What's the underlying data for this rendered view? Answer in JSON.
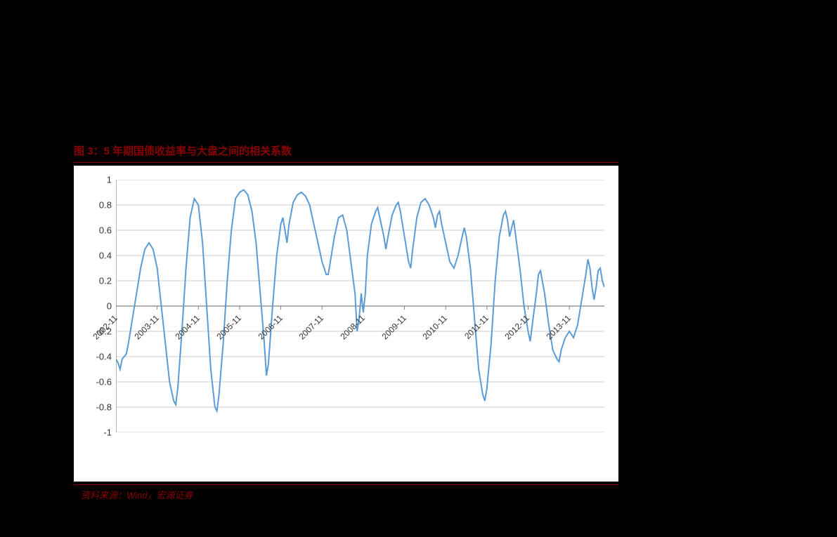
{
  "chart": {
    "type": "line",
    "title_prefix": "图 3：",
    "title": "5 年期国债收益率与大盘之间的相关系数",
    "source": "资料来源：Wind，宏源证券",
    "background_color": "#000000",
    "plot_background": "#ffffff",
    "title_color": "#8b0000",
    "source_color": "#8b0000",
    "axis_color": "#808080",
    "gridline_color": "#bfbfbf",
    "line_color": "#5b9bd5",
    "line_width": 2,
    "ylim": [
      -1,
      1
    ],
    "ytick_step": 0.2,
    "y_ticks": [
      -1,
      -0.8,
      -0.6,
      -0.4,
      -0.2,
      0,
      0.2,
      0.4,
      0.6,
      0.8,
      1
    ],
    "x_labels": [
      "2002-11",
      "2003-11",
      "2004-11",
      "2005-11",
      "2006-11",
      "2007-11",
      "2008-11",
      "2009-11",
      "2010-11",
      "2011-11",
      "2012-11",
      "2013-11"
    ],
    "x_label_rotation": -45,
    "tick_fontsize": 13,
    "title_fontsize": 15,
    "series": [
      {
        "x": 0,
        "y": -0.42
      },
      {
        "x": 0.05,
        "y": -0.45
      },
      {
        "x": 0.1,
        "y": -0.5
      },
      {
        "x": 0.15,
        "y": -0.42
      },
      {
        "x": 0.2,
        "y": -0.4
      },
      {
        "x": 0.25,
        "y": -0.38
      },
      {
        "x": 0.3,
        "y": -0.3
      },
      {
        "x": 0.4,
        "y": -0.1
      },
      {
        "x": 0.5,
        "y": 0.1
      },
      {
        "x": 0.6,
        "y": 0.3
      },
      {
        "x": 0.7,
        "y": 0.45
      },
      {
        "x": 0.8,
        "y": 0.5
      },
      {
        "x": 0.9,
        "y": 0.45
      },
      {
        "x": 1.0,
        "y": 0.3
      },
      {
        "x": 1.1,
        "y": 0.0
      },
      {
        "x": 1.2,
        "y": -0.3
      },
      {
        "x": 1.3,
        "y": -0.6
      },
      {
        "x": 1.4,
        "y": -0.75
      },
      {
        "x": 1.45,
        "y": -0.78
      },
      {
        "x": 1.5,
        "y": -0.65
      },
      {
        "x": 1.6,
        "y": -0.2
      },
      {
        "x": 1.7,
        "y": 0.3
      },
      {
        "x": 1.8,
        "y": 0.7
      },
      {
        "x": 1.9,
        "y": 0.85
      },
      {
        "x": 2.0,
        "y": 0.8
      },
      {
        "x": 2.1,
        "y": 0.5
      },
      {
        "x": 2.2,
        "y": 0.0
      },
      {
        "x": 2.3,
        "y": -0.5
      },
      {
        "x": 2.4,
        "y": -0.8
      },
      {
        "x": 2.45,
        "y": -0.83
      },
      {
        "x": 2.5,
        "y": -0.7
      },
      {
        "x": 2.6,
        "y": -0.3
      },
      {
        "x": 2.7,
        "y": 0.2
      },
      {
        "x": 2.8,
        "y": 0.6
      },
      {
        "x": 2.9,
        "y": 0.85
      },
      {
        "x": 3.0,
        "y": 0.9
      },
      {
        "x": 3.1,
        "y": 0.92
      },
      {
        "x": 3.2,
        "y": 0.88
      },
      {
        "x": 3.3,
        "y": 0.75
      },
      {
        "x": 3.4,
        "y": 0.5
      },
      {
        "x": 3.5,
        "y": 0.1
      },
      {
        "x": 3.6,
        "y": -0.3
      },
      {
        "x": 3.65,
        "y": -0.55
      },
      {
        "x": 3.7,
        "y": -0.45
      },
      {
        "x": 3.8,
        "y": 0.0
      },
      {
        "x": 3.9,
        "y": 0.4
      },
      {
        "x": 4.0,
        "y": 0.65
      },
      {
        "x": 4.05,
        "y": 0.7
      },
      {
        "x": 4.1,
        "y": 0.6
      },
      {
        "x": 4.15,
        "y": 0.5
      },
      {
        "x": 4.2,
        "y": 0.65
      },
      {
        "x": 4.3,
        "y": 0.82
      },
      {
        "x": 4.4,
        "y": 0.88
      },
      {
        "x": 4.5,
        "y": 0.9
      },
      {
        "x": 4.6,
        "y": 0.87
      },
      {
        "x": 4.7,
        "y": 0.8
      },
      {
        "x": 4.8,
        "y": 0.65
      },
      {
        "x": 4.9,
        "y": 0.5
      },
      {
        "x": 5.0,
        "y": 0.35
      },
      {
        "x": 5.1,
        "y": 0.25
      },
      {
        "x": 5.15,
        "y": 0.25
      },
      {
        "x": 5.2,
        "y": 0.35
      },
      {
        "x": 5.3,
        "y": 0.55
      },
      {
        "x": 5.4,
        "y": 0.7
      },
      {
        "x": 5.5,
        "y": 0.72
      },
      {
        "x": 5.6,
        "y": 0.6
      },
      {
        "x": 5.7,
        "y": 0.35
      },
      {
        "x": 5.8,
        "y": 0.1
      },
      {
        "x": 5.85,
        "y": -0.2
      },
      {
        "x": 5.9,
        "y": -0.1
      },
      {
        "x": 5.95,
        "y": 0.1
      },
      {
        "x": 6.0,
        "y": -0.05
      },
      {
        "x": 6.05,
        "y": 0.1
      },
      {
        "x": 6.1,
        "y": 0.4
      },
      {
        "x": 6.2,
        "y": 0.65
      },
      {
        "x": 6.3,
        "y": 0.75
      },
      {
        "x": 6.35,
        "y": 0.78
      },
      {
        "x": 6.4,
        "y": 0.7
      },
      {
        "x": 6.5,
        "y": 0.55
      },
      {
        "x": 6.55,
        "y": 0.45
      },
      {
        "x": 6.6,
        "y": 0.55
      },
      {
        "x": 6.7,
        "y": 0.72
      },
      {
        "x": 6.8,
        "y": 0.8
      },
      {
        "x": 6.85,
        "y": 0.82
      },
      {
        "x": 6.9,
        "y": 0.75
      },
      {
        "x": 7.0,
        "y": 0.55
      },
      {
        "x": 7.1,
        "y": 0.35
      },
      {
        "x": 7.15,
        "y": 0.3
      },
      {
        "x": 7.2,
        "y": 0.45
      },
      {
        "x": 7.3,
        "y": 0.7
      },
      {
        "x": 7.4,
        "y": 0.82
      },
      {
        "x": 7.5,
        "y": 0.85
      },
      {
        "x": 7.6,
        "y": 0.8
      },
      {
        "x": 7.7,
        "y": 0.7
      },
      {
        "x": 7.75,
        "y": 0.62
      },
      {
        "x": 7.8,
        "y": 0.72
      },
      {
        "x": 7.85,
        "y": 0.75
      },
      {
        "x": 7.9,
        "y": 0.65
      },
      {
        "x": 8.0,
        "y": 0.5
      },
      {
        "x": 8.1,
        "y": 0.35
      },
      {
        "x": 8.2,
        "y": 0.3
      },
      {
        "x": 8.3,
        "y": 0.4
      },
      {
        "x": 8.4,
        "y": 0.55
      },
      {
        "x": 8.45,
        "y": 0.62
      },
      {
        "x": 8.5,
        "y": 0.55
      },
      {
        "x": 8.6,
        "y": 0.3
      },
      {
        "x": 8.7,
        "y": -0.1
      },
      {
        "x": 8.8,
        "y": -0.5
      },
      {
        "x": 8.9,
        "y": -0.7
      },
      {
        "x": 8.95,
        "y": -0.75
      },
      {
        "x": 9.0,
        "y": -0.65
      },
      {
        "x": 9.1,
        "y": -0.3
      },
      {
        "x": 9.2,
        "y": 0.2
      },
      {
        "x": 9.3,
        "y": 0.55
      },
      {
        "x": 9.4,
        "y": 0.72
      },
      {
        "x": 9.45,
        "y": 0.75
      },
      {
        "x": 9.5,
        "y": 0.68
      },
      {
        "x": 9.55,
        "y": 0.55
      },
      {
        "x": 9.6,
        "y": 0.62
      },
      {
        "x": 9.65,
        "y": 0.68
      },
      {
        "x": 9.7,
        "y": 0.55
      },
      {
        "x": 9.8,
        "y": 0.3
      },
      {
        "x": 9.9,
        "y": 0.0
      },
      {
        "x": 10.0,
        "y": -0.2
      },
      {
        "x": 10.05,
        "y": -0.28
      },
      {
        "x": 10.1,
        "y": -0.15
      },
      {
        "x": 10.2,
        "y": 0.1
      },
      {
        "x": 10.25,
        "y": 0.25
      },
      {
        "x": 10.3,
        "y": 0.28
      },
      {
        "x": 10.4,
        "y": 0.1
      },
      {
        "x": 10.5,
        "y": -0.15
      },
      {
        "x": 10.6,
        "y": -0.35
      },
      {
        "x": 10.7,
        "y": -0.42
      },
      {
        "x": 10.75,
        "y": -0.44
      },
      {
        "x": 10.8,
        "y": -0.35
      },
      {
        "x": 10.9,
        "y": -0.25
      },
      {
        "x": 11.0,
        "y": -0.2
      },
      {
        "x": 11.1,
        "y": -0.25
      },
      {
        "x": 11.2,
        "y": -0.15
      },
      {
        "x": 11.3,
        "y": 0.05
      },
      {
        "x": 11.4,
        "y": 0.25
      },
      {
        "x": 11.45,
        "y": 0.37
      },
      {
        "x": 11.5,
        "y": 0.3
      },
      {
        "x": 11.55,
        "y": 0.15
      },
      {
        "x": 11.6,
        "y": 0.05
      },
      {
        "x": 11.65,
        "y": 0.15
      },
      {
        "x": 11.7,
        "y": 0.28
      },
      {
        "x": 11.75,
        "y": 0.3
      },
      {
        "x": 11.8,
        "y": 0.2
      },
      {
        "x": 11.85,
        "y": 0.15
      }
    ],
    "x_domain": [
      0,
      11.85
    ]
  }
}
